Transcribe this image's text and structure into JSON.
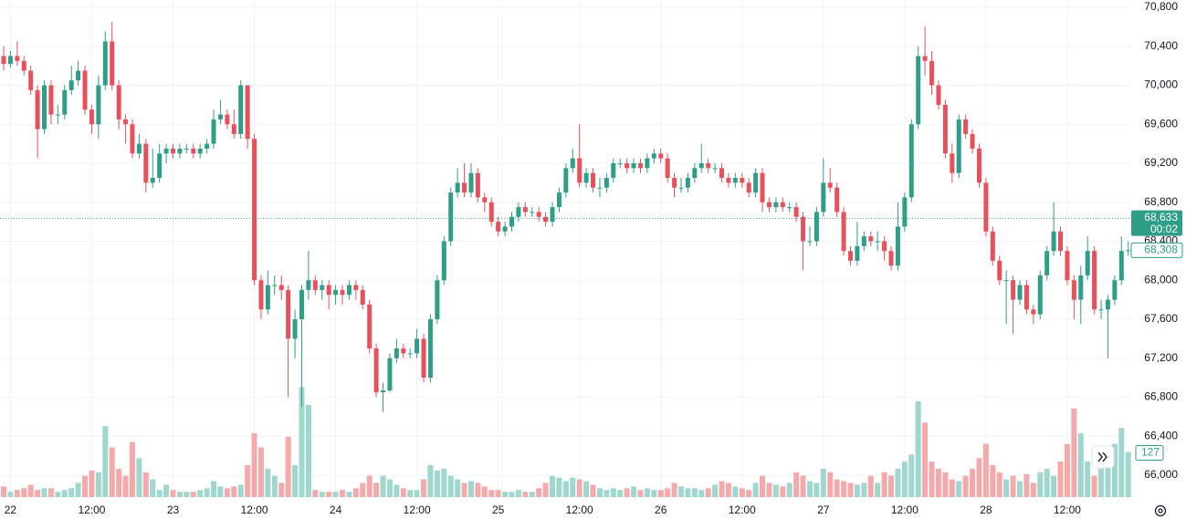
{
  "chart_data": {
    "type": "candlestick",
    "up_color": "#2f9e88",
    "down_color": "#e8505b",
    "volume_up_color": "#9fd6ce",
    "volume_down_color": "#f4aaab",
    "grid": true,
    "ylim": [
      65775,
      70875
    ],
    "yticks": [
      {
        "value": 70800,
        "label": "70,800"
      },
      {
        "value": 70400,
        "label": "70,400"
      },
      {
        "value": 70000,
        "label": "70,000"
      },
      {
        "value": 69600,
        "label": "69,600"
      },
      {
        "value": 69200,
        "label": "69,200"
      },
      {
        "value": 68800,
        "label": "68,800"
      },
      {
        "value": 68400,
        "label": "68,400"
      },
      {
        "value": 68000,
        "label": "68,000"
      },
      {
        "value": 67600,
        "label": "67,600"
      },
      {
        "value": 67200,
        "label": "67,200"
      },
      {
        "value": 66800,
        "label": "66,800"
      },
      {
        "value": 66400,
        "label": "66,400"
      },
      {
        "value": 66000,
        "label": "66,000"
      }
    ],
    "volume_ylim": [
      0,
      1400
    ],
    "last_price": {
      "value": 68633,
      "label": "68,633"
    },
    "countdown": "00:02",
    "close_label": {
      "value": 68308,
      "label": "68,308"
    },
    "categories": [
      null,
      "22",
      null,
      null,
      null,
      null,
      null,
      null,
      null,
      null,
      null,
      null,
      null,
      "12:00",
      null,
      null,
      null,
      null,
      null,
      null,
      null,
      null,
      null,
      null,
      null,
      "23",
      null,
      null,
      null,
      null,
      null,
      null,
      null,
      null,
      null,
      null,
      null,
      "12:00",
      null,
      null,
      null,
      null,
      null,
      null,
      null,
      null,
      null,
      null,
      null,
      "24",
      null,
      null,
      null,
      null,
      null,
      null,
      null,
      null,
      null,
      null,
      null,
      "12:00",
      null,
      null,
      null,
      null,
      null,
      null,
      null,
      null,
      null,
      null,
      null,
      "25",
      null,
      null,
      null,
      null,
      null,
      null,
      null,
      null,
      null,
      null,
      null,
      "12:00",
      null,
      null,
      null,
      null,
      null,
      null,
      null,
      null,
      null,
      null,
      null,
      "26",
      null,
      null,
      null,
      null,
      null,
      null,
      null,
      null,
      null,
      null,
      null,
      "12:00",
      null,
      null,
      null,
      null,
      null,
      null,
      null,
      null,
      null,
      null,
      null,
      "27",
      null,
      null,
      null,
      null,
      null,
      null,
      null,
      null,
      null,
      null,
      null,
      "12:00",
      null,
      null,
      null,
      null,
      null,
      null,
      null,
      null,
      null,
      null,
      null,
      "28",
      null,
      null,
      null,
      null,
      null,
      null,
      null,
      null,
      null,
      null,
      null,
      "12:00",
      null,
      null,
      null,
      null,
      null,
      null,
      null,
      null,
      null
    ],
    "open": [
      70300,
      70220,
      70300,
      70250,
      70150,
      69950,
      69550,
      70000,
      69700,
      69700,
      69950,
      70050,
      70150,
      69750,
      69600,
      70000,
      70450,
      70000,
      69650,
      69600,
      69300,
      69400,
      69000,
      69050,
      69300,
      69350,
      69300,
      69350,
      69350,
      69300,
      69350,
      69400,
      69650,
      69700,
      69600,
      69500,
      70000,
      69450,
      68000,
      67700,
      67950,
      67950,
      67900,
      67400,
      67600,
      67900,
      68000,
      67900,
      67950,
      67850,
      67900,
      67850,
      67950,
      67900,
      67750,
      67300,
      66850,
      66870,
      67200,
      67300,
      67250,
      67250,
      67400,
      67000,
      67600,
      68000,
      68400,
      68900,
      69000,
      68900,
      69100,
      68850,
      68800,
      68600,
      68500,
      68550,
      68650,
      68750,
      68700,
      68700,
      68650,
      68600,
      68750,
      68900,
      69150,
      69250,
      69000,
      69100,
      68950,
      68950,
      69050,
      69200,
      69200,
      69150,
      69200,
      69150,
      69250,
      69300,
      69250,
      69050,
      68950,
      68950,
      69050,
      69150,
      69200,
      69150,
      69150,
      69050,
      69000,
      69050,
      69000,
      68900,
      69100,
      68800,
      68750,
      68800,
      68750,
      68750,
      68650,
      68400,
      68400,
      68700,
      69000,
      68950,
      68700,
      68300,
      68200,
      68350,
      68450,
      68400,
      68400,
      68300,
      68150,
      68550,
      68850,
      69600,
      70300,
      70250,
      70000,
      69800,
      69300,
      69100,
      69650,
      69500,
      69350,
      69000,
      68500,
      68200,
      68000,
      68000,
      67800,
      67950,
      67700,
      67650,
      68050,
      68300,
      68500,
      68300,
      68000,
      67800,
      68050,
      68300,
      67700,
      67700,
      67800,
      68000,
      68300
    ],
    "high": [
      70400,
      70350,
      70450,
      70300,
      70200,
      70000,
      70050,
      70050,
      69800,
      70000,
      70200,
      70250,
      70200,
      69800,
      70100,
      70550,
      70650,
      70050,
      69700,
      69650,
      69500,
      69450,
      69350,
      69400,
      69400,
      69400,
      69400,
      69400,
      69400,
      69400,
      69450,
      69750,
      69850,
      69750,
      69750,
      70050,
      70000,
      69500,
      68050,
      68100,
      68050,
      68050,
      67950,
      67700,
      67950,
      68300,
      68050,
      68000,
      68000,
      67950,
      67950,
      68000,
      68000,
      67950,
      67800,
      67350,
      66950,
      67250,
      67400,
      67350,
      67300,
      67500,
      67450,
      67650,
      68050,
      68450,
      68950,
      69150,
      69200,
      69200,
      69150,
      68900,
      68850,
      68650,
      68600,
      68700,
      68800,
      68800,
      68750,
      68750,
      68700,
      68800,
      68950,
      69200,
      69350,
      69600,
      69150,
      69150,
      69050,
      69100,
      69250,
      69250,
      69250,
      69250,
      69250,
      69300,
      69350,
      69350,
      69300,
      69100,
      69050,
      69100,
      69200,
      69400,
      69250,
      69200,
      69200,
      69100,
      69100,
      69100,
      69050,
      69150,
      69150,
      68850,
      68850,
      68850,
      68800,
      68800,
      68700,
      68550,
      68750,
      69250,
      69150,
      69000,
      68750,
      68350,
      68600,
      68500,
      68500,
      68500,
      68450,
      68350,
      68800,
      68900,
      69650,
      70400,
      70600,
      70350,
      70050,
      69850,
      69400,
      69700,
      69700,
      69550,
      69400,
      69050,
      68550,
      68250,
      68100,
      68050,
      68000,
      68000,
      67750,
      68100,
      68350,
      68800,
      68550,
      68350,
      68050,
      68150,
      68450,
      68350,
      67800,
      67850,
      68050,
      68450,
      68400
    ],
    "low": [
      70150,
      70180,
      70200,
      70100,
      69900,
      69250,
      69500,
      69600,
      69600,
      69650,
      69900,
      70000,
      69700,
      69500,
      69450,
      69950,
      69950,
      69550,
      69400,
      69250,
      69250,
      68900,
      68950,
      69000,
      69200,
      69250,
      69250,
      69300,
      69250,
      69250,
      69300,
      69350,
      69600,
      69550,
      69450,
      69450,
      69350,
      67950,
      67600,
      67650,
      67850,
      67800,
      66800,
      67200,
      66700,
      67800,
      67850,
      67800,
      67700,
      67750,
      67750,
      67800,
      67800,
      67700,
      67250,
      66800,
      66650,
      66850,
      67150,
      67200,
      67200,
      67200,
      66950,
      66950,
      67550,
      67950,
      68350,
      68850,
      68850,
      68850,
      68800,
      68700,
      68550,
      68450,
      68450,
      68500,
      68600,
      68650,
      68650,
      68600,
      68550,
      68550,
      68700,
      68850,
      69100,
      68950,
      68950,
      68900,
      68850,
      68900,
      69000,
      69150,
      69100,
      69100,
      69100,
      69100,
      69200,
      69200,
      69000,
      68850,
      68900,
      68900,
      69000,
      69100,
      69100,
      69100,
      69000,
      68950,
      68950,
      68950,
      68850,
      68850,
      68700,
      68700,
      68700,
      68700,
      68700,
      68600,
      68100,
      68350,
      68350,
      68650,
      68900,
      68650,
      68250,
      68150,
      68150,
      68300,
      68350,
      68300,
      68200,
      68100,
      68100,
      68500,
      68800,
      69550,
      70100,
      69900,
      69750,
      69250,
      69000,
      69050,
      69450,
      69300,
      68950,
      68450,
      68150,
      67950,
      67550,
      67450,
      67750,
      67650,
      67550,
      67600,
      68000,
      68250,
      68250,
      67950,
      67600,
      67550,
      68000,
      67650,
      67600,
      67200,
      67750,
      67950,
      68250
    ],
    "close": [
      70220,
      70300,
      70250,
      70150,
      69950,
      69550,
      70000,
      69700,
      69700,
      69950,
      70050,
      70150,
      69750,
      69600,
      70000,
      70450,
      70000,
      69650,
      69600,
      69300,
      69400,
      69000,
      69050,
      69300,
      69350,
      69300,
      69350,
      69350,
      69300,
      69350,
      69400,
      69650,
      69700,
      69600,
      69500,
      70000,
      69450,
      68000,
      67700,
      67950,
      67950,
      67900,
      67400,
      67600,
      67900,
      68000,
      67900,
      67950,
      67850,
      67900,
      67850,
      67950,
      67900,
      67750,
      67300,
      66850,
      66870,
      67200,
      67300,
      67250,
      67250,
      67400,
      67000,
      67600,
      68000,
      68400,
      68900,
      69000,
      68900,
      69100,
      68850,
      68800,
      68600,
      68500,
      68550,
      68650,
      68750,
      68700,
      68700,
      68650,
      68600,
      68750,
      68900,
      69150,
      69250,
      69000,
      69100,
      68950,
      68950,
      69050,
      69200,
      69200,
      69150,
      69200,
      69150,
      69250,
      69300,
      69250,
      69050,
      68950,
      68950,
      69050,
      69150,
      69200,
      69150,
      69150,
      69050,
      69000,
      69050,
      69000,
      68900,
      69100,
      68800,
      68750,
      68800,
      68750,
      68750,
      68650,
      68400,
      68400,
      68700,
      69000,
      68950,
      68700,
      68300,
      68200,
      68350,
      68450,
      68400,
      68400,
      68300,
      68150,
      68550,
      68850,
      69600,
      70300,
      70250,
      70000,
      69800,
      69300,
      69100,
      69650,
      69500,
      69350,
      69000,
      68500,
      68200,
      68000,
      68000,
      67800,
      67950,
      67700,
      67650,
      68050,
      68300,
      68500,
      68300,
      68000,
      67800,
      68050,
      68300,
      67700,
      67700,
      67800,
      68000,
      68300,
      68308
    ],
    "volume": [
      30,
      15,
      20,
      25,
      35,
      20,
      25,
      25,
      15,
      20,
      25,
      40,
      60,
      75,
      70,
      200,
      140,
      80,
      60,
      155,
      110,
      70,
      50,
      20,
      35,
      20,
      15,
      15,
      15,
      20,
      25,
      45,
      30,
      25,
      30,
      35,
      90,
      180,
      140,
      80,
      60,
      40,
      170,
      90,
      310,
      260,
      20,
      15,
      15,
      15,
      20,
      15,
      25,
      40,
      60,
      40,
      60,
      50,
      35,
      25,
      20,
      20,
      50,
      90,
      75,
      80,
      60,
      50,
      40,
      45,
      40,
      30,
      20,
      20,
      15,
      15,
      20,
      15,
      15,
      25,
      40,
      60,
      55,
      45,
      55,
      50,
      45,
      35,
      25,
      20,
      25,
      20,
      25,
      30,
      20,
      25,
      20,
      20,
      25,
      40,
      30,
      25,
      25,
      20,
      25,
      35,
      45,
      40,
      30,
      25,
      20,
      40,
      60,
      40,
      35,
      30,
      40,
      70,
      60,
      45,
      40,
      80,
      70,
      50,
      45,
      40,
      35,
      40,
      60,
      40,
      70,
      60,
      80,
      100,
      120,
      270,
      210,
      100,
      80,
      70,
      50,
      45,
      60,
      80,
      110,
      150,
      90,
      70,
      50,
      60,
      45,
      65,
      40,
      70,
      80,
      60,
      100,
      150,
      250,
      180,
      100,
      60,
      80,
      120,
      150,
      195,
      127
    ]
  }
}
